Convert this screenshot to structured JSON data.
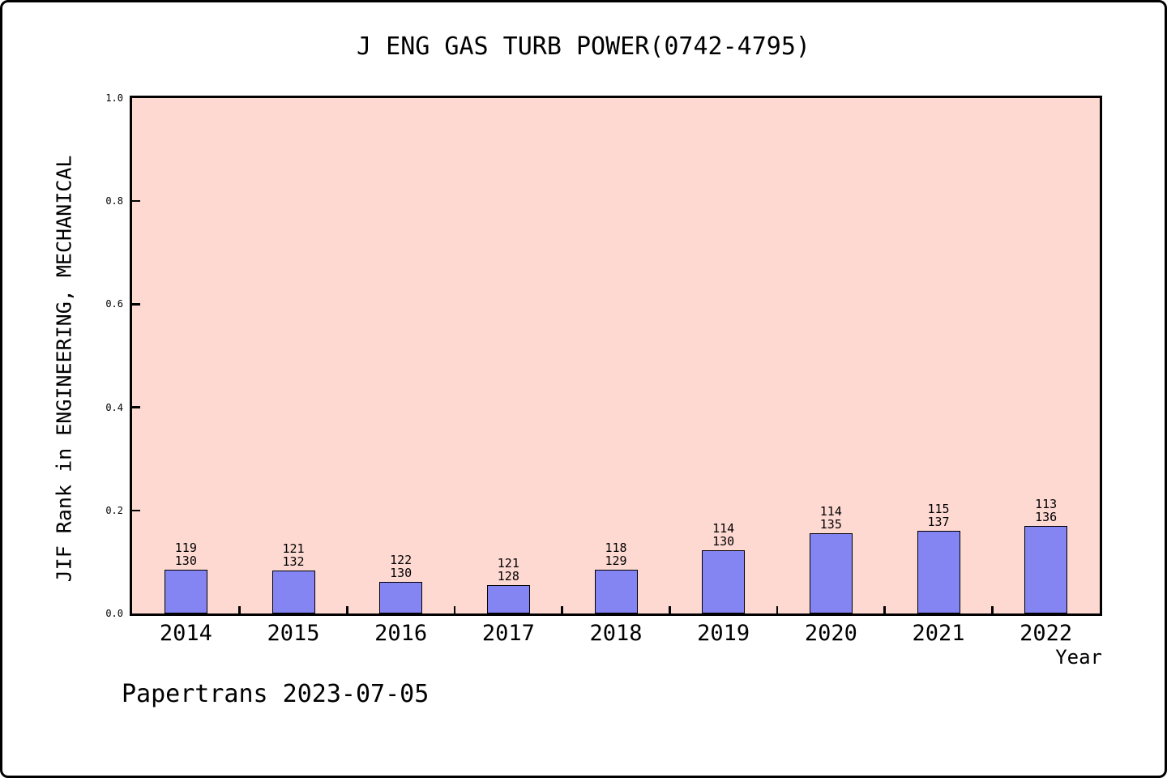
{
  "header": {
    "title": "J ENG GAS TURB POWER(0742-4795)"
  },
  "footer": {
    "watermark": "Papertrans 2023-07-05"
  },
  "chart_data": {
    "type": "bar",
    "title": "J ENG GAS TURB POWER(0742-4795)",
    "xlabel": "Year",
    "ylabel": "JIF Rank in ENGINEERING, MECHANICAL",
    "ylim": [
      0.0,
      1.0
    ],
    "yticks": [
      0.0,
      0.2,
      0.4,
      0.6,
      0.8,
      1.0
    ],
    "grid": false,
    "legend": false,
    "categories": [
      "2014",
      "2015",
      "2016",
      "2017",
      "2018",
      "2019",
      "2020",
      "2021",
      "2022"
    ],
    "bars": [
      {
        "year": "2014",
        "rank": 119,
        "total": 130,
        "value": 0.0846
      },
      {
        "year": "2015",
        "rank": 121,
        "total": 132,
        "value": 0.0833
      },
      {
        "year": "2016",
        "rank": 122,
        "total": 130,
        "value": 0.0615
      },
      {
        "year": "2017",
        "rank": 121,
        "total": 128,
        "value": 0.0547
      },
      {
        "year": "2018",
        "rank": 118,
        "total": 129,
        "value": 0.0853
      },
      {
        "year": "2019",
        "rank": 114,
        "total": 130,
        "value": 0.1231
      },
      {
        "year": "2020",
        "rank": 114,
        "total": 135,
        "value": 0.1556
      },
      {
        "year": "2021",
        "rank": 115,
        "total": 137,
        "value": 0.1606
      },
      {
        "year": "2022",
        "rank": 113,
        "total": 136,
        "value": 0.1691
      }
    ],
    "colors": {
      "plot_bg": "#fed9d2",
      "bar_fill": "#8484f3",
      "bar_edge": "#000000",
      "axis": "#000000",
      "text": "#000000"
    }
  }
}
